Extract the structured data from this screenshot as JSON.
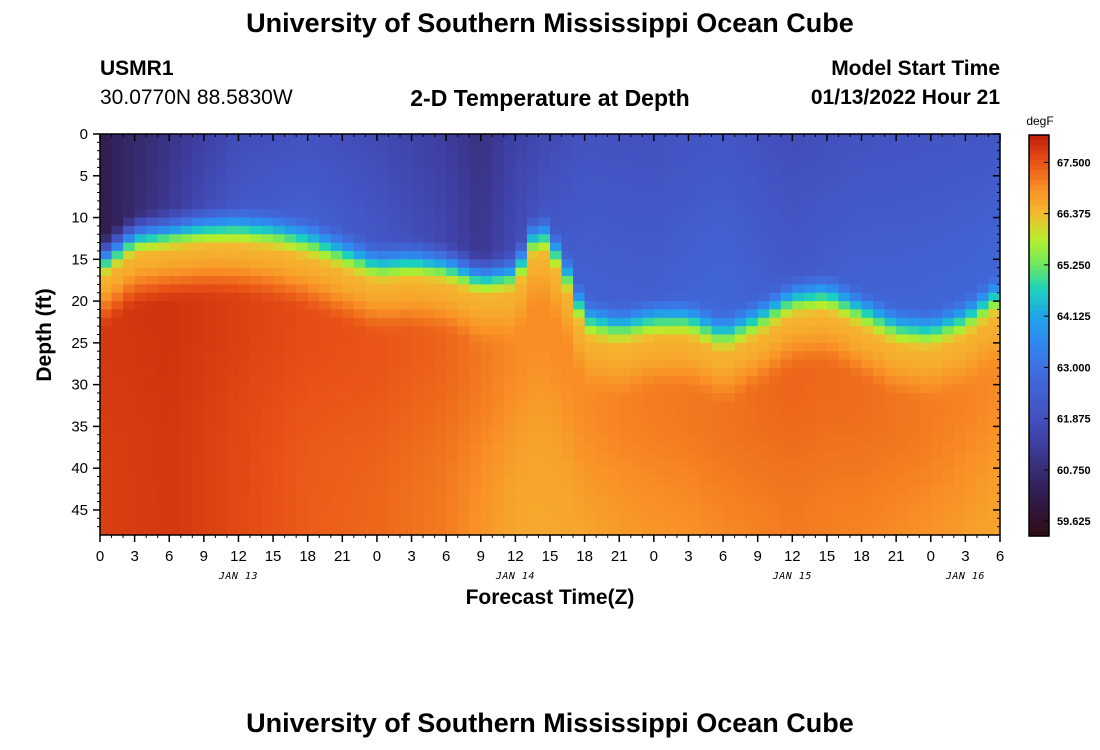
{
  "header": {
    "title": "University of Southern Mississippi Ocean Cube",
    "station": "USMR1",
    "coords": "30.0770N  88.5830W",
    "subtitle": "2-D Temperature at Depth",
    "model_label": "Model Start Time",
    "model_time": "01/13/2022 Hour 21"
  },
  "footer": {
    "title": "University of Southern Mississippi Ocean Cube"
  },
  "chart_data": {
    "type": "heatmap",
    "title": "2-D Temperature at Depth",
    "xlabel": "Forecast Time(Z)",
    "ylabel": "Depth (ft)",
    "x_range_hours": [
      0,
      78
    ],
    "y_range_ft": [
      0,
      48
    ],
    "x_tick_labels": [
      "0",
      "3",
      "6",
      "9",
      "12",
      "15",
      "18",
      "21",
      "0",
      "3",
      "6",
      "9",
      "12",
      "15",
      "18",
      "21",
      "0",
      "3",
      "6",
      "9",
      "12",
      "15",
      "18",
      "21",
      "0",
      "3",
      "6"
    ],
    "x_tick_hours": [
      0,
      3,
      6,
      9,
      12,
      15,
      18,
      21,
      24,
      27,
      30,
      33,
      36,
      39,
      42,
      45,
      48,
      51,
      54,
      57,
      60,
      63,
      66,
      69,
      72,
      75,
      78
    ],
    "date_labels": [
      {
        "label": "JAN 13",
        "hour": 12
      },
      {
        "label": "JAN 14",
        "hour": 36
      },
      {
        "label": "JAN 15",
        "hour": 60
      },
      {
        "label": "JAN 16",
        "hour": 75
      }
    ],
    "y_tick_labels": [
      "0",
      "5",
      "10",
      "15",
      "20",
      "25",
      "30",
      "35",
      "40",
      "45"
    ],
    "y_tick_values": [
      0,
      5,
      10,
      15,
      20,
      25,
      30,
      35,
      40,
      45
    ],
    "colorbar": {
      "unit": "degF",
      "min": 59.3,
      "max": 68.1,
      "tick_labels": [
        "67.500",
        "66.375",
        "65.250",
        "64.125",
        "63.000",
        "61.875",
        "60.750",
        "59.625"
      ],
      "tick_values": [
        67.5,
        66.375,
        65.25,
        64.125,
        63.0,
        61.875,
        60.75,
        59.625
      ]
    },
    "thermocline": {
      "hours": [
        0,
        3,
        6,
        9,
        12,
        15,
        18,
        21,
        24,
        27,
        30,
        33,
        36,
        38,
        40,
        42,
        45,
        48,
        51,
        54,
        57,
        60,
        63,
        66,
        69,
        72,
        75,
        78
      ],
      "depth_ft": [
        15,
        12,
        11.5,
        11,
        11,
        11.5,
        12.5,
        14,
        15.5,
        15,
        15.5,
        17,
        16.5,
        11,
        15,
        22,
        23,
        22,
        22,
        24,
        22,
        19.5,
        19,
        21,
        23,
        23.5,
        22,
        19
      ]
    },
    "surface_temp": {
      "hours": [
        0,
        6,
        12,
        18,
        24,
        30,
        33,
        36,
        42,
        48,
        54,
        60,
        66,
        72,
        78
      ],
      "degF": [
        60.2,
        61.2,
        62.3,
        62.6,
        62.2,
        61.6,
        61.1,
        61.8,
        62.6,
        62.5,
        62.8,
        62.3,
        62.6,
        62.7,
        62.8
      ]
    },
    "deep_temp": {
      "hours": [
        0,
        6,
        12,
        18,
        24,
        30,
        36,
        42,
        48,
        54,
        60,
        66,
        72,
        78
      ],
      "degF": [
        67.7,
        67.8,
        67.6,
        67.4,
        67.3,
        67.1,
        66.6,
        66.6,
        66.8,
        66.9,
        67.1,
        67.0,
        66.8,
        66.6
      ]
    },
    "warm_core_max_degF": 68.0
  }
}
